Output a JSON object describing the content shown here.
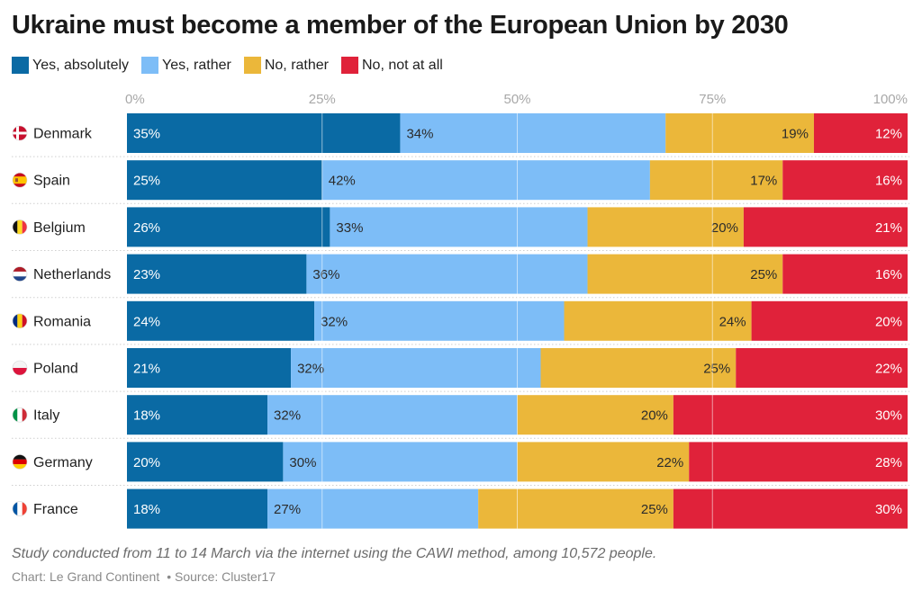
{
  "title": "Ukraine must become a member of the European Union by 2030",
  "legend": [
    {
      "label": "Yes, absolutely",
      "color": "#0a6aa4"
    },
    {
      "label": "Yes, rather",
      "color": "#7dbdf7"
    },
    {
      "label": "No, rather",
      "color": "#ebb73a"
    },
    {
      "label": "No, not at all",
      "color": "#e0223a"
    }
  ],
  "chart_data": {
    "type": "bar",
    "orientation": "horizontal",
    "stacked": true,
    "xlim": [
      0,
      100
    ],
    "ticks": [
      "0%",
      "25%",
      "50%",
      "75%",
      "100%"
    ],
    "categories": [
      "Denmark",
      "Spain",
      "Belgium",
      "Netherlands",
      "Romania",
      "Poland",
      "Italy",
      "Germany",
      "France"
    ],
    "series": [
      {
        "name": "Yes, absolutely",
        "color": "#0a6aa4",
        "values": [
          35,
          25,
          26,
          23,
          24,
          21,
          18,
          20,
          18
        ]
      },
      {
        "name": "Yes, rather",
        "color": "#7dbdf7",
        "values": [
          34,
          42,
          33,
          36,
          32,
          32,
          32,
          30,
          27
        ]
      },
      {
        "name": "No, rather",
        "color": "#ebb73a",
        "values": [
          19,
          17,
          20,
          25,
          24,
          25,
          20,
          22,
          25
        ]
      },
      {
        "name": "No, not at all",
        "color": "#e0223a",
        "values": [
          12,
          16,
          21,
          16,
          20,
          22,
          30,
          28,
          30
        ]
      }
    ],
    "flags": [
      "flag-denmark-icon",
      "flag-spain-icon",
      "flag-belgium-icon",
      "flag-netherlands-icon",
      "flag-romania-icon",
      "flag-poland-icon",
      "flag-italy-icon",
      "flag-germany-icon",
      "flag-france-icon"
    ],
    "grid": true
  },
  "note": "Study conducted from 11 to 14 March via the internet using the CAWI method, among 10,572 people.",
  "credits": {
    "chart": "Chart: Le Grand Continent",
    "source": "• Source: Cluster17"
  }
}
